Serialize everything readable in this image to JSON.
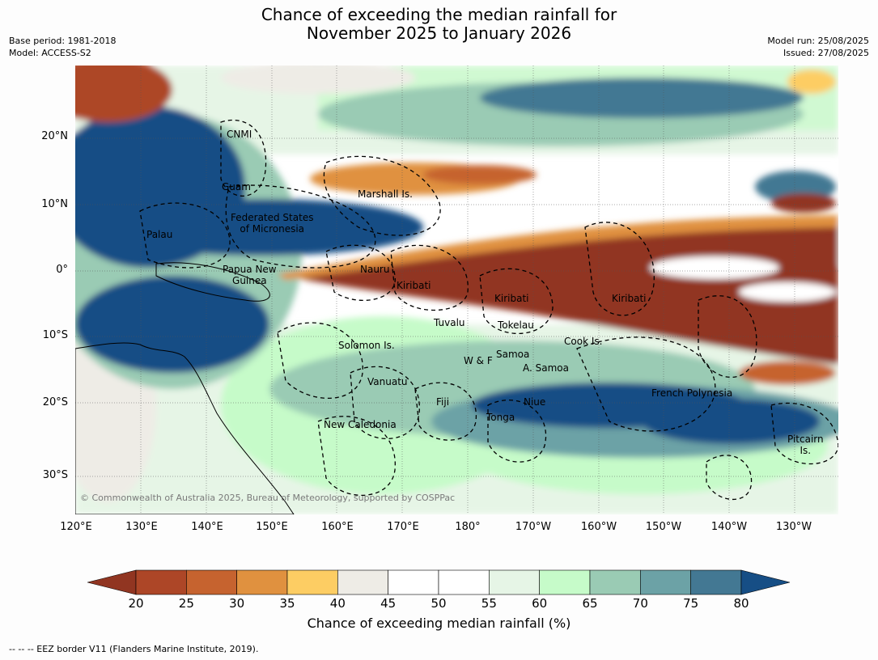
{
  "title_line1": "Chance of exceeding the median rainfall for",
  "title_line2": "November 2025 to January 2026",
  "meta_left": [
    "Base period: 1981-2018",
    "Model: ACCESS-S2"
  ],
  "meta_right": [
    "Model run: 25/08/2025",
    "Issued: 27/08/2025"
  ],
  "lat_labels": [
    "20°N",
    "10°N",
    "0°",
    "10°S",
    "20°S",
    "30°S"
  ],
  "lon_labels": [
    "120°E",
    "130°E",
    "140°E",
    "150°E",
    "160°E",
    "170°E",
    "180°",
    "170°W",
    "160°W",
    "150°W",
    "140°W",
    "130°W"
  ],
  "regions": {
    "cnmi": "CNMI",
    "guam": "Guam",
    "marshall": "Marshall Is.",
    "fsm1": "Federated States",
    "fsm2": "of Micronesia",
    "palau": "Palau",
    "png1": "Papua New",
    "png2": "Guinea",
    "nauru": "Nauru",
    "kiribati_w": "Kiribati",
    "kiribati_c": "Kiribati",
    "kiribati_e": "Kiribati",
    "tuvalu": "Tuvalu",
    "tokelau": "Tokelau",
    "cook": "Cook Is.",
    "solomon": "Solomon Is.",
    "samoa": "Samoa",
    "wf": "W & F",
    "asamoa": "A. Samoa",
    "vanuatu": "Vanuatu",
    "fiji": "Fiji",
    "niue": "Niue",
    "tonga": "Tonga",
    "newcal": "New Caledonia",
    "frpoly": "French Polynesia",
    "pitcairn1": "Pitcairn",
    "pitcairn2": "Is."
  },
  "copyright": "© Commonwealth of Australia 2025, Bureau of Meteorology, supported by COSPPac",
  "colorbar": {
    "ticks": [
      "20",
      "25",
      "30",
      "35",
      "40",
      "45",
      "50",
      "55",
      "60",
      "65",
      "70",
      "75",
      "80"
    ],
    "colors": [
      "#ad4627",
      "#c6632f",
      "#e0913f",
      "#fdcd63",
      "#eeece6",
      "#ffffff",
      "#ffffff",
      "#e6f5e6",
      "#c6fbc9",
      "#9acbb4",
      "#6ca2a6",
      "#437893"
    ],
    "under_color": "#913521",
    "over_color": "#164e85",
    "label": "Chance of exceeding median rainfall (%)"
  },
  "footnote": "--  --  -- EEZ border V11 (Flanders Marine Institute, 2019)."
}
